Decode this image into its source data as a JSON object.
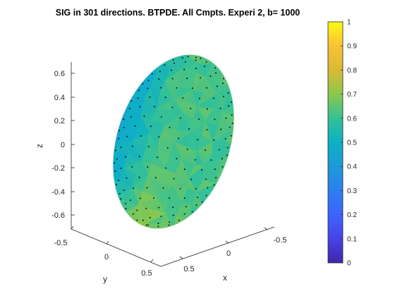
{
  "chart_data": {
    "type": "surface3d",
    "title": "SIG in 301 directions. BTPDE. All Cmpts. Experi 2, b= 1000",
    "xlabel": "x",
    "ylabel": "y",
    "zlabel": "z",
    "x_ticks": [
      "-0.5",
      "0",
      "0.5"
    ],
    "y_ticks": [
      "-0.5",
      "0",
      "0.5"
    ],
    "z_ticks": [
      "0.6",
      "0.4",
      "0.2",
      "0",
      "-0.2",
      "-0.4",
      "-0.6"
    ],
    "colorbar": {
      "colormap": "parula",
      "range": [
        0,
        1
      ],
      "ticks": [
        "1",
        "0.9",
        "0.8",
        "0.7",
        "0.6",
        "0.5",
        "0.4",
        "0.3",
        "0.2",
        "0.1",
        "0"
      ]
    },
    "surface": {
      "shape": "ellipsoid",
      "directions": 301,
      "value_min": 0.45,
      "value_max": 0.72,
      "low_region": "left side",
      "high_region": "lower front"
    },
    "colors": {
      "low": "#3ba5d9",
      "mid": "#39bc96",
      "high": "#c6bc2a",
      "points": "#000000"
    }
  }
}
